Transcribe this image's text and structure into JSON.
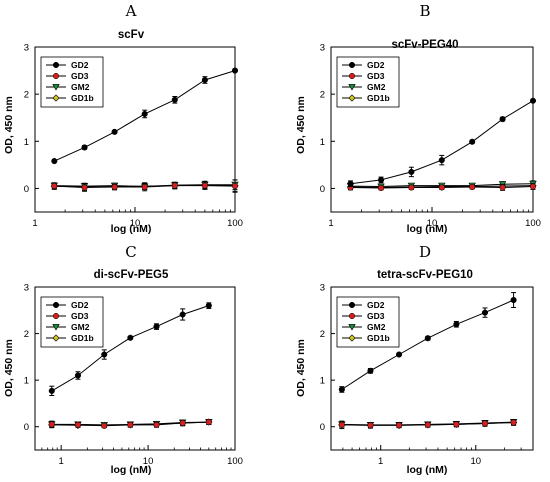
{
  "chart_data": [
    {
      "letter": "A",
      "title": "scFv",
      "type": "line",
      "ylabel": "OD, 450 nm",
      "xlabel": "log (nM)",
      "xscale": "log",
      "xlim": [
        1,
        100
      ],
      "ylim": [
        -0.5,
        3
      ],
      "xticks": [
        1,
        10,
        100
      ],
      "yticks": [
        0,
        1,
        2,
        3
      ],
      "legend": "top-left",
      "series": [
        {
          "name": "GD2",
          "color": "#000000",
          "x": [
            1.56,
            3.13,
            6.25,
            12.5,
            25,
            50,
            100
          ],
          "y": [
            0.58,
            0.87,
            1.2,
            1.58,
            1.88,
            2.3,
            2.5
          ],
          "err": [
            0.02,
            0.04,
            0.03,
            0.08,
            0.07,
            0.07,
            0.03
          ]
        },
        {
          "name": "GD3",
          "color": "#d42020",
          "x": [
            1.56,
            3.13,
            6.25,
            12.5,
            25,
            50,
            100
          ],
          "y": [
            0.05,
            0.02,
            0.03,
            0.03,
            0.06,
            0.06,
            0.05
          ],
          "err": [
            0.07,
            0.08,
            0.06,
            0.08,
            0.07,
            0.08,
            0.13
          ]
        },
        {
          "name": "GM2",
          "color": "#1a8a3a",
          "x": [
            1.56,
            3.13,
            6.25,
            12.5,
            25,
            50,
            100
          ],
          "y": [
            0.06,
            0.05,
            0.06,
            0.04,
            0.07,
            0.08,
            0.08
          ],
          "err": [
            0.05,
            0.06,
            0.05,
            0.06,
            0.06,
            0.07,
            0.1
          ]
        },
        {
          "name": "GD1b",
          "color": "#c8c020",
          "x": [
            1.56,
            3.13,
            6.25,
            12.5,
            25,
            50,
            100
          ],
          "y": [
            0.05,
            0.03,
            0.04,
            0.05,
            0.06,
            0.07,
            0.06
          ],
          "err": [
            0.05,
            0.07,
            0.05,
            0.07,
            0.06,
            0.08,
            0.12
          ]
        }
      ]
    },
    {
      "letter": "B",
      "title": "scFv-PEG40",
      "type": "line",
      "ylabel": "OD, 450 nm",
      "xlabel": "log (nM)",
      "xscale": "log",
      "xlim": [
        1,
        100
      ],
      "ylim": [
        -0.5,
        3
      ],
      "xticks": [
        1,
        10,
        100
      ],
      "yticks": [
        0,
        1,
        2,
        3
      ],
      "legend": "top-left",
      "series": [
        {
          "name": "GD2",
          "color": "#000000",
          "x": [
            1.56,
            3.13,
            6.25,
            12.5,
            25,
            50,
            100
          ],
          "y": [
            0.1,
            0.18,
            0.35,
            0.6,
            0.99,
            1.47,
            1.86
          ],
          "err": [
            0.06,
            0.06,
            0.1,
            0.1,
            0.03,
            0.04,
            0.02
          ]
        },
        {
          "name": "GD3",
          "color": "#d42020",
          "x": [
            1.56,
            3.13,
            6.25,
            12.5,
            25,
            50,
            100
          ],
          "y": [
            0.02,
            0.01,
            0.02,
            0.02,
            0.03,
            0.02,
            0.04
          ],
          "err": [
            0.05,
            0.04,
            0.04,
            0.04,
            0.04,
            0.06,
            0.06
          ]
        },
        {
          "name": "GM2",
          "color": "#1a8a3a",
          "x": [
            1.56,
            3.13,
            6.25,
            12.5,
            25,
            50,
            100
          ],
          "y": [
            0.05,
            0.04,
            0.06,
            0.06,
            0.06,
            0.09,
            0.1
          ],
          "err": [
            0.04,
            0.03,
            0.04,
            0.03,
            0.04,
            0.05,
            0.06
          ]
        },
        {
          "name": "GD1b",
          "color": "#c8c020",
          "x": [
            1.56,
            3.13,
            6.25,
            12.5,
            25,
            50,
            100
          ],
          "y": [
            0.03,
            0.02,
            0.03,
            0.04,
            0.04,
            0.05,
            0.06
          ],
          "err": [
            0.04,
            0.04,
            0.04,
            0.03,
            0.04,
            0.05,
            0.05
          ]
        }
      ]
    },
    {
      "letter": "C",
      "title": "di-scFv-PEG5",
      "type": "line",
      "ylabel": "OD, 450 nm",
      "xlabel": "log (nM)",
      "xscale": "log",
      "xlim": [
        0.5,
        100
      ],
      "ylim": [
        -0.5,
        3
      ],
      "xticks": [
        1,
        10,
        100
      ],
      "yticks": [
        0,
        1,
        2,
        3
      ],
      "legend": "top-left",
      "series": [
        {
          "name": "GD2",
          "color": "#000000",
          "x": [
            0.78,
            1.56,
            3.13,
            6.25,
            12.5,
            25,
            50
          ],
          "y": [
            0.77,
            1.1,
            1.55,
            1.91,
            2.15,
            2.41,
            2.6
          ],
          "err": [
            0.1,
            0.08,
            0.1,
            0.03,
            0.06,
            0.12,
            0.06
          ]
        },
        {
          "name": "GD3",
          "color": "#d42020",
          "x": [
            0.78,
            1.56,
            3.13,
            6.25,
            12.5,
            25,
            50
          ],
          "y": [
            0.05,
            0.04,
            0.02,
            0.04,
            0.04,
            0.08,
            0.1
          ],
          "err": [
            0.07,
            0.05,
            0.04,
            0.05,
            0.05,
            0.06,
            0.05
          ]
        },
        {
          "name": "GM2",
          "color": "#1a8a3a",
          "x": [
            0.78,
            1.56,
            3.13,
            6.25,
            12.5,
            25,
            50
          ],
          "y": [
            0.05,
            0.05,
            0.04,
            0.05,
            0.06,
            0.09,
            0.1
          ],
          "err": [
            0.05,
            0.04,
            0.04,
            0.04,
            0.05,
            0.05,
            0.05
          ]
        },
        {
          "name": "GD1b",
          "color": "#c8c020",
          "x": [
            0.78,
            1.56,
            3.13,
            6.25,
            12.5,
            25,
            50
          ],
          "y": [
            0.04,
            0.03,
            0.03,
            0.04,
            0.05,
            0.08,
            0.1
          ],
          "err": [
            0.05,
            0.04,
            0.04,
            0.04,
            0.05,
            0.05,
            0.05
          ]
        }
      ]
    },
    {
      "letter": "D",
      "title": "tetra-scFv-PEG10",
      "type": "line",
      "ylabel": "OD, 450 nm",
      "xlabel": "log (nM)",
      "xscale": "log",
      "xlim": [
        0.3,
        40
      ],
      "ylim": [
        -0.5,
        3
      ],
      "xticks": [
        1,
        10
      ],
      "yticks": [
        0,
        1,
        2,
        3
      ],
      "legend": "top-left",
      "series": [
        {
          "name": "GD2",
          "color": "#000000",
          "x": [
            0.39,
            0.78,
            1.56,
            3.13,
            6.25,
            12.5,
            25
          ],
          "y": [
            0.8,
            1.2,
            1.55,
            1.9,
            2.2,
            2.45,
            2.72
          ],
          "err": [
            0.06,
            0.05,
            0.03,
            0.04,
            0.06,
            0.1,
            0.16
          ]
        },
        {
          "name": "GD3",
          "color": "#d42020",
          "x": [
            0.39,
            0.78,
            1.56,
            3.13,
            6.25,
            12.5,
            25
          ],
          "y": [
            0.04,
            0.03,
            0.03,
            0.04,
            0.05,
            0.07,
            0.09
          ],
          "err": [
            0.08,
            0.06,
            0.05,
            0.05,
            0.05,
            0.06,
            0.06
          ]
        },
        {
          "name": "GM2",
          "color": "#1a8a3a",
          "x": [
            0.39,
            0.78,
            1.56,
            3.13,
            6.25,
            12.5,
            25
          ],
          "y": [
            0.05,
            0.04,
            0.04,
            0.05,
            0.06,
            0.08,
            0.1
          ],
          "err": [
            0.05,
            0.04,
            0.04,
            0.04,
            0.05,
            0.05,
            0.05
          ]
        },
        {
          "name": "GD1b",
          "color": "#c8c020",
          "x": [
            0.39,
            0.78,
            1.56,
            3.13,
            6.25,
            12.5,
            25
          ],
          "y": [
            0.04,
            0.03,
            0.03,
            0.04,
            0.05,
            0.07,
            0.09
          ],
          "err": [
            0.05,
            0.04,
            0.04,
            0.04,
            0.05,
            0.05,
            0.05
          ]
        }
      ]
    }
  ]
}
